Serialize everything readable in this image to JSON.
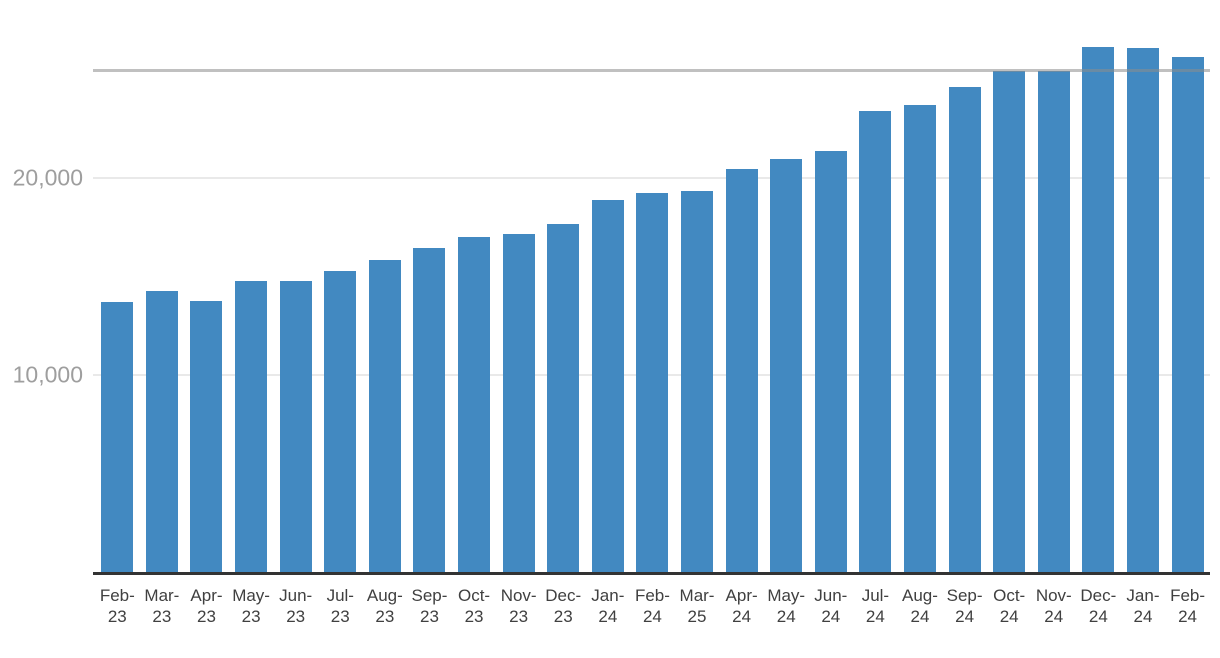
{
  "chart_data": {
    "type": "bar",
    "title": "",
    "xlabel": "",
    "ylabel": "",
    "legend": "none",
    "grid": true,
    "background": "#ffffff",
    "bar_color": "#4289c1",
    "gridline_color": "#e9e9e9",
    "axis_line_color": "#333333",
    "y_tick_color": "#9e9e9e",
    "x_tick_color": "#404040",
    "ylim": [
      0,
      29000
    ],
    "y_ticks": [
      {
        "label": "10,000",
        "value": 10000
      },
      {
        "label": "20,000",
        "value": 20000
      }
    ],
    "reference_line": {
      "value": 25430,
      "color": "rgba(140,140,140,0.55)"
    },
    "categories": [
      "Feb-23",
      "Mar-23",
      "Apr-23",
      "May-23",
      "Jun-23",
      "Jul-23",
      "Aug-23",
      "Sep-23",
      "Oct-23",
      "Nov-23",
      "Dec-23",
      "Jan-24",
      "Feb-24",
      "Mar-25",
      "Apr-24",
      "May-24",
      "Jun-24",
      "Jul-24",
      "Aug-24",
      "Sep-24",
      "Oct-24",
      "Nov-24",
      "Dec-24",
      "Jan-24",
      "Feb-24"
    ],
    "x_tick_labels": [
      [
        "Feb-",
        "23"
      ],
      [
        "Mar-",
        "23"
      ],
      [
        "Apr-",
        "23"
      ],
      [
        "May-",
        "23"
      ],
      [
        "Jun-",
        "23"
      ],
      [
        "Jul-",
        "23"
      ],
      [
        "Aug-",
        "23"
      ],
      [
        "Sep-",
        "23"
      ],
      [
        "Oct-",
        "23"
      ],
      [
        "Nov-",
        "23"
      ],
      [
        "Dec-",
        "23"
      ],
      [
        "Jan-",
        "24"
      ],
      [
        "Feb-",
        "24"
      ],
      [
        "Mar-",
        "25"
      ],
      [
        "Apr-",
        "24"
      ],
      [
        "May-",
        "24"
      ],
      [
        "Jun-",
        "24"
      ],
      [
        "Jul-",
        "24"
      ],
      [
        "Aug-",
        "24"
      ],
      [
        "Sep-",
        "24"
      ],
      [
        "Oct-",
        "24"
      ],
      [
        "Nov-",
        "24"
      ],
      [
        "Dec-",
        "24"
      ],
      [
        "Jan-",
        "24"
      ],
      [
        "Feb-",
        "24"
      ]
    ],
    "values": [
      13700,
      14260,
      13750,
      14740,
      14770,
      15250,
      15820,
      16410,
      16970,
      17120,
      17630,
      18860,
      19230,
      19320,
      20430,
      20940,
      21330,
      23370,
      23680,
      24600,
      25420,
      25420,
      26600,
      26570,
      26130
    ]
  }
}
